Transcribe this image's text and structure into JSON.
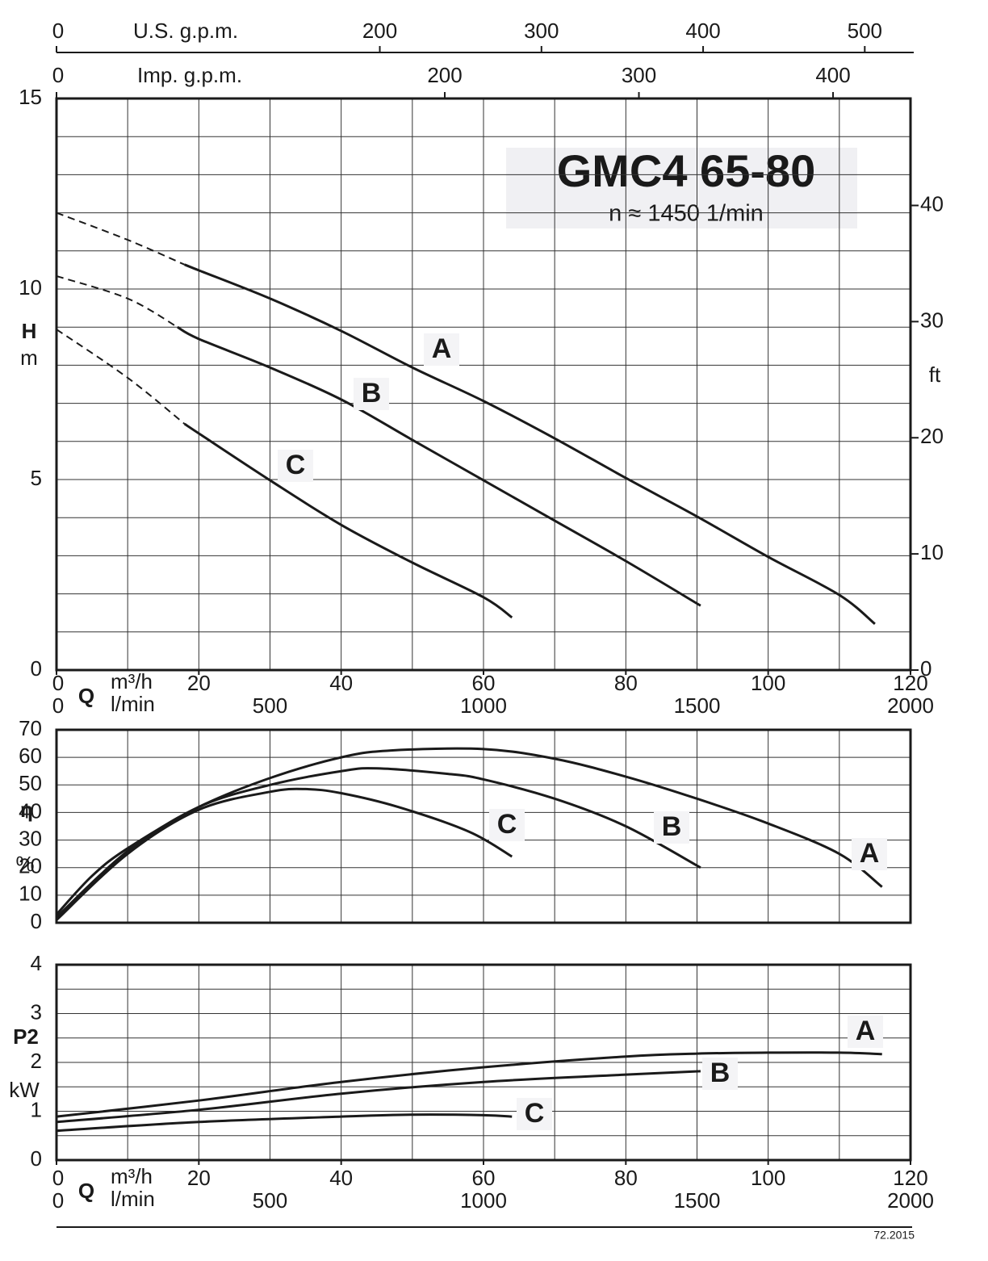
{
  "chart_data": [
    {
      "type": "line",
      "title": "GMC4 65-80",
      "subtitle": "n ≈ 1450 1/min",
      "y_label": "H",
      "y_unit": "m",
      "y2_label": "ft",
      "xlabel": "Q",
      "xunit": "m³/h",
      "xlim": [
        0,
        120
      ],
      "xticks": [
        0,
        20,
        40,
        60,
        80,
        100,
        120
      ],
      "x2": {
        "label": "l/min",
        "lim": [
          0,
          2000
        ],
        "ticks": [
          0,
          500,
          1000,
          1500,
          2000
        ]
      },
      "top_axes": [
        {
          "label": "U.S. g.p.m.",
          "lim": [
            0,
            528.3
          ],
          "ticks": [
            0,
            200,
            300,
            400,
            500
          ]
        },
        {
          "label": "Imp. g.p.m.",
          "lim": [
            0,
            439.9
          ],
          "ticks": [
            0,
            200,
            300,
            400
          ]
        }
      ],
      "ylim": [
        0,
        15
      ],
      "yticks": [
        0,
        5,
        10,
        15
      ],
      "y2lim": [
        0,
        49.21
      ],
      "y2ticks": [
        0,
        10,
        20,
        30,
        40
      ],
      "x_grid": [
        0,
        10,
        20,
        30,
        40,
        50,
        60,
        70,
        80,
        90,
        100,
        110,
        120
      ],
      "y_grid": [
        0,
        1,
        2,
        3,
        4,
        5,
        6,
        7,
        8,
        9,
        10,
        11,
        12,
        13,
        14,
        15
      ],
      "series": [
        {
          "name": "A",
          "color": "#1a1a1a",
          "dashed_x": [
            0,
            10,
            18
          ],
          "dashed_values": [
            12,
            11.29,
            10.64
          ],
          "x": [
            18,
            20,
            30,
            40,
            50,
            60,
            70,
            80,
            90,
            100,
            110,
            115
          ],
          "values": [
            10.64,
            10.49,
            9.75,
            8.9,
            7.94,
            7.06,
            6.08,
            5.04,
            4.03,
            2.97,
            1.97,
            1.21
          ]
        },
        {
          "name": "B",
          "color": "#1a1a1a",
          "dashed_x": [
            0,
            10,
            17
          ],
          "dashed_values": [
            10.34,
            9.75,
            9.0
          ],
          "x": [
            17,
            20,
            30,
            40,
            50,
            60,
            70,
            80,
            90.5
          ],
          "values": [
            9.0,
            8.69,
            7.94,
            7.1,
            6.04,
            4.98,
            3.92,
            2.86,
            1.69
          ]
        },
        {
          "name": "C",
          "color": "#1a1a1a",
          "dashed_x": [
            0,
            10,
            18
          ],
          "dashed_values": [
            8.94,
            7.67,
            6.46
          ],
          "x": [
            18,
            20,
            30,
            40,
            50,
            60,
            64
          ],
          "values": [
            6.46,
            6.21,
            4.98,
            3.81,
            2.82,
            1.91,
            1.38
          ]
        }
      ]
    },
    {
      "type": "line",
      "y_label": "η",
      "y_unit": "%",
      "xlim": [
        0,
        120
      ],
      "ylim": [
        0,
        70
      ],
      "yticks": [
        0,
        10,
        20,
        30,
        40,
        50,
        60,
        70
      ],
      "x_grid": [
        0,
        10,
        20,
        30,
        40,
        50,
        60,
        70,
        80,
        90,
        100,
        110,
        120
      ],
      "y_grid": [
        0,
        10,
        20,
        30,
        40,
        50,
        60,
        70
      ],
      "series": [
        {
          "name": "A",
          "color": "#1a1a1a",
          "x": [
            0,
            5,
            10,
            20,
            30,
            40,
            47,
            60,
            70,
            80,
            90,
            100,
            110,
            116
          ],
          "values": [
            3,
            17,
            27,
            42,
            52.5,
            60,
            62.5,
            63,
            59.5,
            53,
            45,
            36,
            25,
            13
          ]
        },
        {
          "name": "B",
          "color": "#1a1a1a",
          "x": [
            0,
            10,
            20,
            30,
            40,
            45,
            55,
            60,
            70,
            80,
            90.5
          ],
          "values": [
            2,
            26,
            42,
            50,
            55,
            56,
            54,
            52,
            45,
            35,
            20
          ]
        },
        {
          "name": "C",
          "color": "#1a1a1a",
          "x": [
            0,
            10,
            20,
            30,
            35,
            40,
            48,
            58,
            64
          ],
          "values": [
            1,
            25,
            41,
            47.5,
            48.5,
            47,
            42,
            33,
            24
          ]
        }
      ]
    },
    {
      "type": "line",
      "y_label": "P2",
      "y_unit": "kW",
      "xlabel": "Q",
      "xunit": "m³/h",
      "xlim": [
        0,
        120
      ],
      "xticks": [
        0,
        20,
        40,
        60,
        80,
        100,
        120
      ],
      "x2": {
        "label": "l/min",
        "lim": [
          0,
          2000
        ],
        "ticks": [
          0,
          500,
          1000,
          1500,
          2000
        ]
      },
      "ylim": [
        0,
        4
      ],
      "yticks": [
        0,
        1,
        2,
        3,
        4
      ],
      "x_grid": [
        0,
        10,
        20,
        30,
        40,
        50,
        60,
        70,
        80,
        90,
        100,
        110,
        120
      ],
      "y_grid": [
        0,
        0.5,
        1,
        1.5,
        2,
        2.5,
        3,
        3.5,
        4
      ],
      "series": [
        {
          "name": "A",
          "color": "#1a1a1a",
          "x": [
            0,
            20,
            40,
            60,
            80,
            90,
            100,
            110,
            116
          ],
          "values": [
            0.89,
            1.22,
            1.6,
            1.9,
            2.12,
            2.18,
            2.2,
            2.2,
            2.17
          ]
        },
        {
          "name": "B",
          "color": "#1a1a1a",
          "x": [
            0,
            20,
            40,
            60,
            80,
            90.5
          ],
          "values": [
            0.78,
            1.03,
            1.36,
            1.6,
            1.75,
            1.82
          ]
        },
        {
          "name": "C",
          "color": "#1a1a1a",
          "x": [
            0,
            20,
            40,
            50,
            60,
            64
          ],
          "values": [
            0.6,
            0.78,
            0.89,
            0.93,
            0.92,
            0.89
          ]
        }
      ]
    }
  ],
  "footer": "72.2015"
}
